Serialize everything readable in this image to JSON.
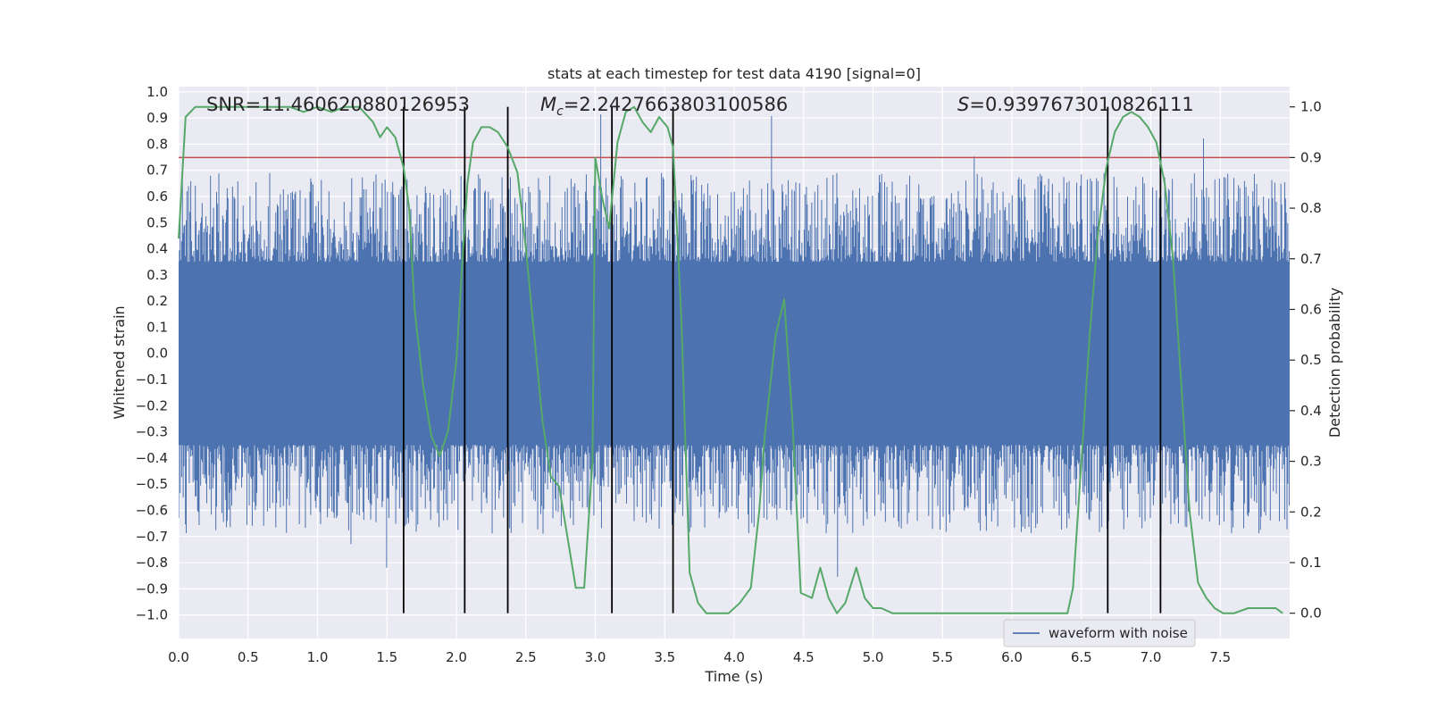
{
  "chart_data": {
    "type": "line",
    "title": "stats at each timestep for test data 4190 [signal=0]",
    "xlabel": "Time (s)",
    "ylabel_left": "Whitened strain",
    "ylabel_right": "Detection probability",
    "xlim": [
      0.0,
      8.0
    ],
    "ylim_left": [
      -1.09,
      1.02
    ],
    "ylim_right": [
      -0.05,
      1.04
    ],
    "x_ticks": [
      0.0,
      0.5,
      1.0,
      1.5,
      2.0,
      2.5,
      3.0,
      3.5,
      4.0,
      4.5,
      5.0,
      5.5,
      6.0,
      6.5,
      7.0,
      7.5
    ],
    "x_tick_labels": [
      "0.0",
      "0.5",
      "1.0",
      "1.5",
      "2.0",
      "2.5",
      "3.0",
      "3.5",
      "4.0",
      "4.5",
      "5.0",
      "5.5",
      "6.0",
      "6.5",
      "7.0",
      "7.5"
    ],
    "y_ticks_left": [
      1.0,
      0.9,
      0.8,
      0.7,
      0.6,
      0.5,
      0.4,
      0.3,
      0.2,
      0.1,
      0.0,
      -0.1,
      -0.2,
      -0.3,
      -0.4,
      -0.5,
      -0.6,
      -0.7,
      -0.8,
      -0.9,
      -1.0
    ],
    "y_tick_labels_left": [
      "1.0",
      "0.9",
      "0.8",
      "0.7",
      "0.6",
      "0.5",
      "0.4",
      "0.3",
      "0.2",
      "0.1",
      "0.0",
      "−0.1",
      "−0.2",
      "−0.3",
      "−0.4",
      "−0.5",
      "−0.6",
      "−0.7",
      "−0.8",
      "−0.9",
      "−1.0"
    ],
    "y_ticks_right": [
      1.0,
      0.9,
      0.8,
      0.7,
      0.6,
      0.5,
      0.4,
      0.3,
      0.2,
      0.1,
      0.0
    ],
    "y_tick_labels_right": [
      "1.0",
      "0.9",
      "0.8",
      "0.7",
      "0.6",
      "0.5",
      "0.4",
      "0.3",
      "0.2",
      "0.1",
      "0.0"
    ],
    "grid": true,
    "annotations": {
      "snr": "SNR=11.460620880126953",
      "mc_symbol": "M",
      "mc_sub": "c",
      "mc_value": "=2.2427663803100586",
      "s_symbol": "S",
      "s_value": "=0.9397673010826111"
    },
    "threshold": {
      "value": 0.9,
      "axis": "right",
      "color": "#c44e52"
    },
    "vertical_markers": [
      1.62,
      2.06,
      2.37,
      3.12,
      3.56,
      6.69,
      7.07
    ],
    "vertical_marker_range_right": [
      0.0,
      1.0
    ],
    "series": [
      {
        "name": "waveform with noise",
        "axis": "left",
        "color": "#4c72b0",
        "style": "dense noise",
        "sample_rate_hz": 2048,
        "core_amplitude": 0.35,
        "envelope_typical": [
          -0.42,
          0.45
        ],
        "extremes": [
          -1.0,
          0.93
        ]
      },
      {
        "axis": "right",
        "color": "#55a868",
        "x": [
          0.0,
          0.05,
          0.12,
          0.2,
          0.3,
          0.4,
          0.5,
          0.6,
          0.7,
          0.8,
          0.9,
          1.0,
          1.1,
          1.2,
          1.3,
          1.4,
          1.45,
          1.5,
          1.56,
          1.62,
          1.66,
          1.7,
          1.76,
          1.82,
          1.88,
          1.94,
          2.0,
          2.04,
          2.08,
          2.12,
          2.18,
          2.24,
          2.3,
          2.37,
          2.44,
          2.5,
          2.56,
          2.62,
          2.68,
          2.74,
          2.8,
          2.86,
          2.92,
          2.98,
          3.0,
          3.05,
          3.1,
          3.16,
          3.22,
          3.28,
          3.34,
          3.4,
          3.46,
          3.52,
          3.56,
          3.62,
          3.68,
          3.74,
          3.8,
          3.88,
          3.96,
          4.04,
          4.12,
          4.18,
          4.22,
          4.3,
          4.36,
          4.42,
          4.48,
          4.56,
          4.62,
          4.68,
          4.74,
          4.8,
          4.88,
          4.94,
          5.0,
          5.06,
          5.14,
          5.22,
          5.3,
          5.4,
          5.5,
          5.6,
          5.7,
          5.8,
          5.9,
          6.0,
          6.1,
          6.2,
          6.3,
          6.4,
          6.44,
          6.5,
          6.56,
          6.62,
          6.68,
          6.74,
          6.8,
          6.86,
          6.92,
          6.98,
          7.04,
          7.1,
          7.16,
          7.22,
          7.28,
          7.34,
          7.4,
          7.46,
          7.52,
          7.6,
          7.7,
          7.8,
          7.9,
          7.95
        ],
        "y": [
          0.74,
          0.98,
          1.0,
          1.0,
          1.0,
          1.0,
          1.0,
          1.0,
          1.0,
          1.0,
          0.99,
          1.0,
          0.99,
          1.0,
          1.0,
          0.97,
          0.94,
          0.96,
          0.94,
          0.88,
          0.8,
          0.6,
          0.45,
          0.35,
          0.31,
          0.36,
          0.5,
          0.68,
          0.85,
          0.93,
          0.96,
          0.96,
          0.95,
          0.92,
          0.87,
          0.72,
          0.55,
          0.38,
          0.27,
          0.25,
          0.15,
          0.05,
          0.05,
          0.3,
          0.9,
          0.82,
          0.76,
          0.93,
          0.99,
          1.0,
          0.97,
          0.95,
          0.98,
          0.96,
          0.92,
          0.58,
          0.08,
          0.02,
          0.0,
          0.0,
          0.0,
          0.02,
          0.05,
          0.2,
          0.35,
          0.55,
          0.62,
          0.38,
          0.04,
          0.03,
          0.09,
          0.03,
          0.0,
          0.02,
          0.09,
          0.03,
          0.01,
          0.01,
          0.0,
          0.0,
          0.0,
          0.0,
          0.0,
          0.0,
          0.0,
          0.0,
          0.0,
          0.0,
          0.0,
          0.0,
          0.0,
          0.0,
          0.05,
          0.3,
          0.55,
          0.75,
          0.88,
          0.95,
          0.98,
          0.99,
          0.98,
          0.96,
          0.93,
          0.85,
          0.7,
          0.45,
          0.2,
          0.06,
          0.03,
          0.01,
          0.0,
          0.0,
          0.01,
          0.01,
          0.01,
          0.0
        ]
      }
    ],
    "legend": {
      "placement": "lower-right",
      "entries": [
        "waveform with noise"
      ]
    }
  }
}
